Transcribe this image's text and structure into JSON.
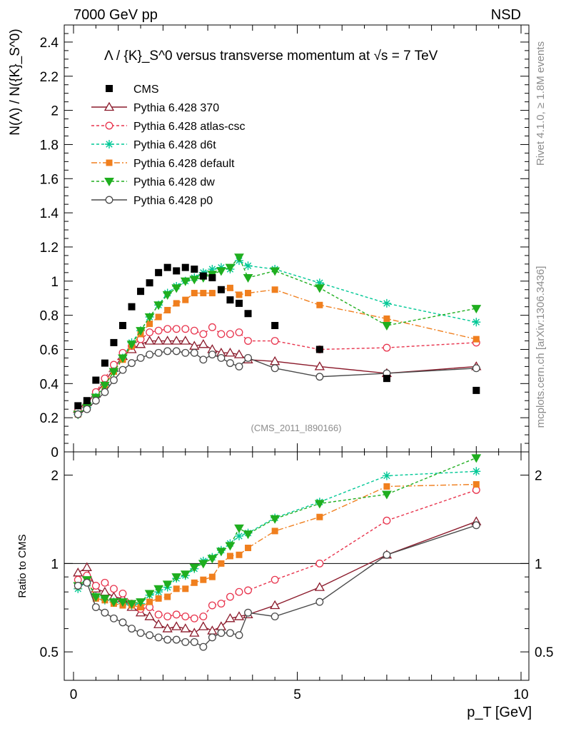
{
  "header": {
    "left": "7000 GeV pp",
    "right": "NSD"
  },
  "side": {
    "rivet": "Rivet 4.1.0, ≥ 1.8M events",
    "mcplots": "mcplots.cern.ch [arXiv:1306.3436]"
  },
  "chart_data": {
    "type": "scatter",
    "title": "Λ / {K}_S^0 versus transverse momentum at √s = 7 TeV",
    "analysis_tag": "(CMS_2011_I890166)",
    "xlabel": "p_T [GeV]",
    "ylabel_main": "N(Λ) / N({K}_S^0)",
    "ylabel_ratio": "Ratio to CMS",
    "xlim": [
      -0.4,
      10
    ],
    "ylim_main": [
      0,
      2.5
    ],
    "ylim_ratio": [
      0.4,
      2.4
    ],
    "x_ticks": [
      "0",
      "5",
      "10"
    ],
    "y_ticks_main": [
      "0.2",
      "0.4",
      "0.6",
      "0.8",
      "1",
      "1.2",
      "1.4",
      "1.6",
      "1.8",
      "2",
      "2.2",
      "2.4"
    ],
    "y_tick_zero": "0",
    "y_ticks_ratio": [
      "0.5",
      "1",
      "2"
    ],
    "legend_position": "top-left",
    "data": {
      "name": "CMS",
      "x": [
        0.1,
        0.3,
        0.5,
        0.7,
        0.9,
        1.1,
        1.3,
        1.5,
        1.7,
        1.9,
        2.1,
        2.3,
        2.5,
        2.7,
        2.9,
        3.1,
        3.3,
        3.5,
        3.7,
        3.9,
        4.5,
        5.5,
        7.0,
        9.0
      ],
      "y": [
        0.27,
        0.3,
        0.42,
        0.52,
        0.64,
        0.74,
        0.85,
        0.94,
        0.99,
        1.05,
        1.08,
        1.06,
        1.08,
        1.07,
        1.03,
        1.02,
        0.95,
        0.89,
        0.87,
        0.81,
        0.74,
        0.6,
        0.43,
        0.36
      ]
    },
    "series": [
      {
        "name": "Pythia 6.428 370",
        "color": "#8b1a2b",
        "dash": "",
        "marker": "triangle",
        "x": [
          0.1,
          0.3,
          0.5,
          0.7,
          0.9,
          1.1,
          1.3,
          1.5,
          1.7,
          1.9,
          2.1,
          2.3,
          2.5,
          2.7,
          2.9,
          3.1,
          3.3,
          3.5,
          3.7,
          3.9,
          4.5,
          5.5,
          7.0,
          9.0
        ],
        "y": [
          0.25,
          0.29,
          0.34,
          0.41,
          0.49,
          0.56,
          0.6,
          0.63,
          0.65,
          0.65,
          0.65,
          0.65,
          0.65,
          0.62,
          0.63,
          0.6,
          0.58,
          0.58,
          0.57,
          0.54,
          0.53,
          0.5,
          0.46,
          0.5
        ],
        "ratio": [
          0.93,
          0.97,
          0.82,
          0.8,
          0.77,
          0.76,
          0.71,
          0.68,
          0.66,
          0.62,
          0.6,
          0.61,
          0.6,
          0.58,
          0.61,
          0.59,
          0.61,
          0.65,
          0.66,
          0.67,
          0.72,
          0.83,
          1.07,
          1.39
        ]
      },
      {
        "name": "Pythia 6.428 atlas-csc",
        "color": "#e8344d",
        "dash": "4,3",
        "marker": "circle-open",
        "x": [
          0.1,
          0.3,
          0.5,
          0.7,
          0.9,
          1.1,
          1.3,
          1.5,
          1.7,
          1.9,
          2.1,
          2.3,
          2.5,
          2.7,
          2.9,
          3.1,
          3.3,
          3.5,
          3.7,
          3.9,
          4.5,
          5.5,
          7.0,
          9.0
        ],
        "y": [
          0.24,
          0.28,
          0.35,
          0.43,
          0.51,
          0.58,
          0.62,
          0.66,
          0.7,
          0.71,
          0.72,
          0.72,
          0.72,
          0.71,
          0.69,
          0.73,
          0.69,
          0.69,
          0.7,
          0.65,
          0.65,
          0.6,
          0.61,
          0.64
        ],
        "ratio": [
          0.88,
          0.91,
          0.84,
          0.86,
          0.82,
          0.79,
          0.73,
          0.7,
          0.71,
          0.67,
          0.66,
          0.67,
          0.66,
          0.65,
          0.66,
          0.72,
          0.73,
          0.77,
          0.8,
          0.81,
          0.88,
          1.0,
          1.4,
          1.78
        ]
      },
      {
        "name": "Pythia 6.428 d6t",
        "color": "#00c896",
        "dash": "4,3",
        "marker": "star",
        "x": [
          0.1,
          0.3,
          0.5,
          0.7,
          0.9,
          1.1,
          1.3,
          1.5,
          1.7,
          1.9,
          2.1,
          2.3,
          2.5,
          2.7,
          2.9,
          3.1,
          3.3,
          3.5,
          3.7,
          3.9,
          4.5,
          5.5,
          7.0,
          9.0
        ],
        "y": [
          0.22,
          0.26,
          0.32,
          0.39,
          0.47,
          0.55,
          0.64,
          0.71,
          0.79,
          0.86,
          0.93,
          0.97,
          1.0,
          1.02,
          1.05,
          1.07,
          1.08,
          1.07,
          1.12,
          1.09,
          1.07,
          0.99,
          0.87,
          0.76
        ],
        "ratio": [
          0.82,
          0.87,
          0.77,
          0.75,
          0.74,
          0.73,
          0.72,
          0.73,
          0.78,
          0.8,
          0.83,
          0.89,
          0.91,
          0.96,
          1.02,
          1.05,
          1.11,
          1.17,
          1.24,
          1.27,
          1.43,
          1.62,
          1.99,
          2.06
        ]
      },
      {
        "name": "Pythia 6.428 default",
        "color": "#f07f1e",
        "dash": "8,3,2,3",
        "marker": "square",
        "x": [
          0.1,
          0.3,
          0.5,
          0.7,
          0.9,
          1.1,
          1.3,
          1.5,
          1.7,
          1.9,
          2.1,
          2.3,
          2.5,
          2.7,
          2.9,
          3.1,
          3.3,
          3.5,
          3.7,
          3.9,
          4.5,
          5.5,
          7.0,
          9.0
        ],
        "y": [
          0.22,
          0.26,
          0.32,
          0.39,
          0.47,
          0.54,
          0.62,
          0.69,
          0.75,
          0.79,
          0.83,
          0.87,
          0.89,
          0.93,
          0.93,
          0.93,
          0.95,
          0.96,
          0.92,
          0.93,
          0.95,
          0.86,
          0.78,
          0.66
        ],
        "ratio": [
          0.84,
          0.88,
          0.76,
          0.75,
          0.73,
          0.72,
          0.72,
          0.71,
          0.74,
          0.76,
          0.77,
          0.82,
          0.82,
          0.86,
          0.88,
          0.9,
          1.0,
          1.06,
          1.07,
          1.13,
          1.29,
          1.44,
          1.83,
          1.86
        ]
      },
      {
        "name": "Pythia 6.428 dw",
        "color": "#1fae1f",
        "dash": "4,3",
        "marker": "triangle-down",
        "x": [
          0.1,
          0.3,
          0.5,
          0.7,
          0.9,
          1.1,
          1.3,
          1.5,
          1.7,
          1.9,
          2.1,
          2.3,
          2.5,
          2.7,
          2.9,
          3.1,
          3.3,
          3.5,
          3.7,
          3.9,
          4.5,
          5.5,
          7.0,
          9.0
        ],
        "y": [
          0.22,
          0.26,
          0.32,
          0.39,
          0.47,
          0.55,
          0.63,
          0.71,
          0.79,
          0.86,
          0.92,
          0.96,
          1.0,
          1.01,
          1.02,
          1.04,
          1.06,
          1.08,
          1.14,
          1.02,
          1.06,
          0.96,
          0.74,
          0.84
        ],
        "ratio": [
          0.84,
          0.88,
          0.77,
          0.76,
          0.74,
          0.74,
          0.73,
          0.74,
          0.79,
          0.82,
          0.85,
          0.9,
          0.92,
          0.97,
          1.0,
          1.04,
          1.1,
          1.15,
          1.32,
          1.26,
          1.42,
          1.6,
          1.72,
          2.29
        ]
      },
      {
        "name": "Pythia 6.428 p0",
        "color": "#4a4a4a",
        "dash": "",
        "marker": "circle-open",
        "x": [
          0.1,
          0.3,
          0.5,
          0.7,
          0.9,
          1.1,
          1.3,
          1.5,
          1.7,
          1.9,
          2.1,
          2.3,
          2.5,
          2.7,
          2.9,
          3.1,
          3.3,
          3.5,
          3.7,
          3.9,
          4.5,
          5.5,
          7.0,
          9.0
        ],
        "y": [
          0.22,
          0.25,
          0.3,
          0.35,
          0.42,
          0.48,
          0.52,
          0.55,
          0.57,
          0.58,
          0.59,
          0.59,
          0.58,
          0.58,
          0.54,
          0.57,
          0.55,
          0.52,
          0.5,
          0.55,
          0.49,
          0.44,
          0.46,
          0.49
        ],
        "ratio": [
          0.84,
          0.86,
          0.71,
          0.68,
          0.65,
          0.63,
          0.6,
          0.58,
          0.57,
          0.56,
          0.55,
          0.55,
          0.54,
          0.54,
          0.52,
          0.56,
          0.58,
          0.58,
          0.57,
          0.68,
          0.66,
          0.74,
          1.07,
          1.35
        ]
      }
    ]
  }
}
